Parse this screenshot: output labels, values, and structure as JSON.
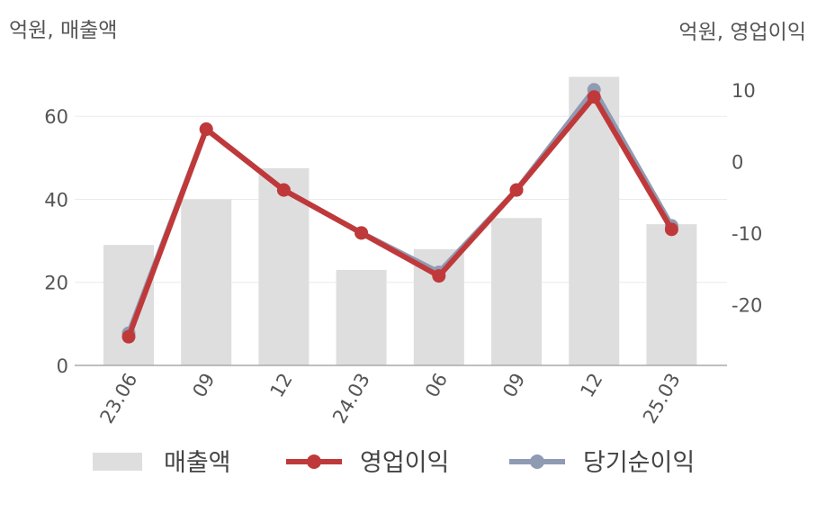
{
  "left_unit_label": "억원, 매출액",
  "right_unit_label": "억원, 영업이익",
  "colors": {
    "revenue": "#dedede",
    "operating_profit": "#c0393a",
    "net_income": "#8f9ab3",
    "grid": "#ebebeb",
    "axis": "#aaaaaa"
  },
  "chart_data": {
    "type": "bar+line",
    "categories": [
      "23.06",
      "09",
      "12",
      "24.03",
      "06",
      "09",
      "12",
      "25.03"
    ],
    "series": [
      {
        "name": "매출액",
        "type": "bar",
        "axis": "left",
        "values": [
          29,
          40,
          47.5,
          23,
          28,
          35.5,
          69.5,
          34
        ]
      },
      {
        "name": "영업이익",
        "type": "line",
        "axis": "right",
        "values": [
          -24.5,
          4.5,
          -4,
          -10,
          -16,
          -4,
          9,
          -9.5
        ]
      },
      {
        "name": "당기순이익",
        "type": "line",
        "axis": "right",
        "values": [
          -24,
          4.5,
          -4,
          -10,
          -15.5,
          -4,
          10,
          -9
        ]
      }
    ],
    "left_axis": {
      "ylim": [
        0,
        75
      ],
      "ticks": [
        "0",
        "20",
        "40",
        "60"
      ]
    },
    "right_axis": {
      "ylim": [
        -28.5,
        15
      ],
      "ticks": [
        "10",
        "0",
        "-10",
        "-20"
      ]
    },
    "grid": "horizontal",
    "legend_position": "bottom"
  }
}
